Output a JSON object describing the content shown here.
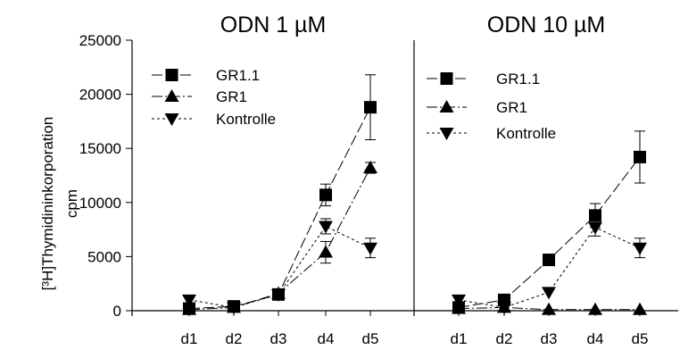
{
  "chart_data": {
    "type": "line",
    "ylabel_line1": "[³H]Thymidininkorporation",
    "ylabel_line2": "cpm",
    "ylim": [
      0,
      25000
    ],
    "yticks": [
      "0",
      "5000",
      "10000",
      "15000",
      "20000",
      "25000"
    ],
    "yticks_values": [
      0,
      5000,
      10000,
      15000,
      20000,
      25000
    ],
    "categories": [
      "d1",
      "d2",
      "d3",
      "d4",
      "d5"
    ],
    "markers": {
      "GR1.1": "square",
      "GR1": "triangle-up",
      "Kontrolle": "triangle-down"
    },
    "panels": [
      {
        "title": "ODN 1 µM",
        "series": [
          {
            "name": "GR1.1",
            "values": [
              200,
              400,
              1500,
              10700,
              18800
            ],
            "errors": [
              0,
              0,
              200,
              1000,
              3000
            ]
          },
          {
            "name": "GR1",
            "values": [
              100,
              300,
              1600,
              5400,
              13200
            ],
            "errors": [
              0,
              0,
              0,
              1000,
              500
            ]
          },
          {
            "name": "Kontrolle",
            "values": [
              1000,
              300,
              1500,
              7800,
              5800
            ],
            "errors": [
              0,
              0,
              0,
              700,
              900
            ]
          }
        ]
      },
      {
        "title": "ODN 10 µM",
        "series": [
          {
            "name": "GR1.1",
            "values": [
              300,
              1000,
              4700,
              8800,
              14200
            ],
            "errors": [
              0,
              0,
              0,
              1100,
              2400
            ]
          },
          {
            "name": "GR1",
            "values": [
              200,
              300,
              100,
              100,
              100
            ],
            "errors": [
              0,
              0,
              0,
              0,
              0
            ]
          },
          {
            "name": "Kontrolle",
            "values": [
              1000,
              300,
              1700,
              7700,
              5800
            ],
            "errors": [
              0,
              0,
              0,
              800,
              900
            ]
          }
        ]
      }
    ]
  }
}
